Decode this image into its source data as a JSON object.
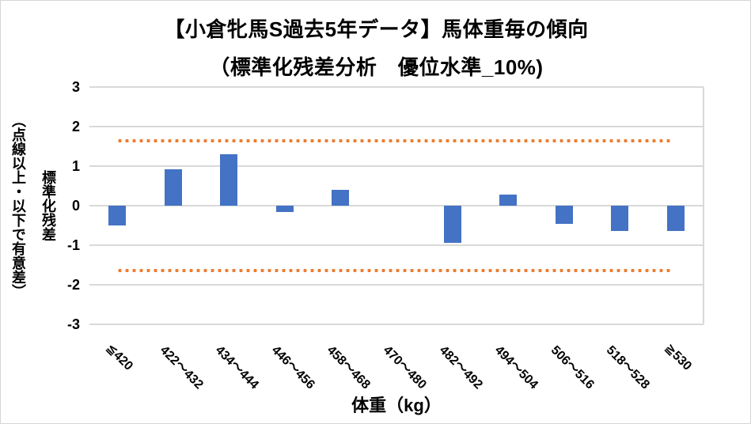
{
  "chart": {
    "title_line1": "【小倉牝馬S過去5年データ】馬体重毎の傾向",
    "title_line2": "（標準化残差分析　優位水準_10%)",
    "y_axis_title_main": "標準化残差",
    "y_axis_title_sub": "（点線以上・以下で有意差）",
    "x_axis_title": "体重（kg）",
    "colors": {
      "bar": "#4472c4",
      "threshold": "#ed7d31",
      "gridline": "#d9d9d9",
      "text": "#000000"
    }
  },
  "chart_data": {
    "type": "bar",
    "title": "【小倉牝馬S過去5年データ】馬体重毎の傾向（標準化残差分析　優位水準_10%)",
    "categories": [
      "≦420",
      "422～432",
      "434～444",
      "446～456",
      "458～468",
      "470～480",
      "482～492",
      "494～504",
      "506～516",
      "518～528",
      "≧530"
    ],
    "values": [
      -0.5,
      0.92,
      1.3,
      -0.15,
      0.4,
      0,
      -0.93,
      0.29,
      -0.45,
      -0.63,
      -0.63
    ],
    "thresholds": {
      "upper": 1.645,
      "lower": -1.645
    },
    "xlabel": "体重（kg）",
    "ylabel": "標準化残差（点線以上・以下で有意差）",
    "ylim": [
      -3,
      3
    ],
    "y_ticks": [
      "3",
      "2",
      "1",
      "0",
      "-1",
      "-2",
      "-3"
    ],
    "grid": true,
    "legend": false
  }
}
